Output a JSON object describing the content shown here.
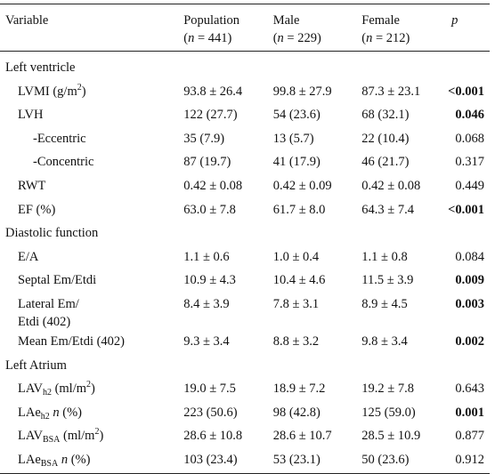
{
  "table": {
    "header": [
      [
        {
          "text": "Variable"
        }
      ],
      [
        {
          "text": "Population"
        },
        {
          "text": "(",
          "newline": true
        },
        {
          "text": "n",
          "style": "italic"
        },
        {
          "text": " = 441)"
        }
      ],
      [
        {
          "text": "Male"
        },
        {
          "text": "(",
          "newline": true
        },
        {
          "text": "n",
          "style": "italic"
        },
        {
          "text": " = 229)"
        }
      ],
      [
        {
          "text": "Female"
        },
        {
          "text": "(",
          "newline": true
        },
        {
          "text": "n",
          "style": "italic"
        },
        {
          "text": " = 212)"
        }
      ],
      [
        {
          "text": "p",
          "style": "italic"
        }
      ]
    ],
    "rows": [
      {
        "section": "Left ventricle"
      },
      {
        "level": 1,
        "variable": [
          {
            "text": "LVMI (g/m"
          },
          {
            "text": "2",
            "style": "sup"
          },
          {
            "text": ")"
          }
        ],
        "cells": [
          "93.8 ± 26.4",
          "99.8 ± 27.9",
          "87.3 ± 23.1",
          "<0.001"
        ],
        "p_bold": true
      },
      {
        "level": 1,
        "variable": [
          {
            "text": "LVH"
          }
        ],
        "cells": [
          "122 (27.7)",
          "54 (23.6)",
          "68 (32.1)",
          "0.046"
        ],
        "p_bold": true
      },
      {
        "level": 2,
        "variable": [
          {
            "text": "-Eccentric"
          }
        ],
        "cells": [
          "35 (7.9)",
          "13 (5.7)",
          "22 (10.4)",
          "0.068"
        ],
        "p_bold": false
      },
      {
        "level": 2,
        "variable": [
          {
            "text": "-Concentric"
          }
        ],
        "cells": [
          "87 (19.7)",
          "41 (17.9)",
          "46 (21.7)",
          "0.317"
        ],
        "p_bold": false
      },
      {
        "level": 1,
        "variable": [
          {
            "text": "RWT"
          }
        ],
        "cells": [
          "0.42 ± 0.08",
          "0.42 ± 0.09",
          "0.42 ± 0.08",
          "0.449"
        ],
        "p_bold": false
      },
      {
        "level": 1,
        "variable": [
          {
            "text": "EF (%)"
          }
        ],
        "cells": [
          "63.0 ± 7.8",
          "61.7 ± 8.0",
          "64.3 ± 7.4",
          "<0.001"
        ],
        "p_bold": true
      },
      {
        "section": "Diastolic function"
      },
      {
        "level": 1,
        "variable": [
          {
            "text": "E/A"
          }
        ],
        "cells": [
          "1.1 ± 0.6",
          "1.0 ± 0.4",
          "1.1 ± 0.8",
          "0.084"
        ],
        "p_bold": false
      },
      {
        "level": 1,
        "variable": [
          {
            "text": "Septal Em/Etdi"
          }
        ],
        "cells": [
          "10.9 ± 4.3",
          "10.4 ± 4.6",
          "11.5 ± 3.9",
          "0.009"
        ],
        "p_bold": true
      },
      {
        "level": 1,
        "variable": [
          {
            "text": "Lateral Em/"
          },
          {
            "text": "Etdi (402)",
            "newline": true
          }
        ],
        "cells": [
          "8.4 ± 3.9",
          "7.8 ± 3.1",
          "8.9 ± 4.5",
          "0.003"
        ],
        "p_bold": true
      },
      {
        "level": 1,
        "variable": [
          {
            "text": "Mean Em/Etdi (402)"
          }
        ],
        "cells": [
          "9.3 ± 3.4",
          "8.8 ± 3.2",
          "9.8 ± 3.4",
          "0.002"
        ],
        "p_bold": true
      },
      {
        "section": "Left Atrium"
      },
      {
        "level": 1,
        "variable": [
          {
            "text": "LAV"
          },
          {
            "text": "h2",
            "style": "sub"
          },
          {
            "text": " (ml/m"
          },
          {
            "text": "2",
            "style": "sup"
          },
          {
            "text": ")"
          }
        ],
        "cells": [
          "19.0 ± 7.5",
          "18.9 ± 7.2",
          "19.2 ± 7.8",
          "0.643"
        ],
        "p_bold": false
      },
      {
        "level": 1,
        "variable": [
          {
            "text": "LAe"
          },
          {
            "text": "h2",
            "style": "sub"
          },
          {
            "text": " "
          },
          {
            "text": "n",
            "style": "italic"
          },
          {
            "text": " (%)"
          }
        ],
        "cells": [
          "223 (50.6)",
          "98 (42.8)",
          "125 (59.0)",
          "0.001"
        ],
        "p_bold": true
      },
      {
        "level": 1,
        "variable": [
          {
            "text": "LAV"
          },
          {
            "text": "BSA",
            "style": "sub"
          },
          {
            "text": " (ml/m"
          },
          {
            "text": "2",
            "style": "sup"
          },
          {
            "text": ")"
          }
        ],
        "cells": [
          "28.6 ± 10.8",
          "28.6 ± 10.7",
          "28.5 ± 10.9",
          "0.877"
        ],
        "p_bold": false
      },
      {
        "level": 1,
        "variable": [
          {
            "text": "LAe"
          },
          {
            "text": "BSA",
            "style": "sub"
          },
          {
            "text": " "
          },
          {
            "text": "n",
            "style": "italic"
          },
          {
            "text": " (%)"
          }
        ],
        "cells": [
          "103 (23.4)",
          "53 (23.1)",
          "50 (23.6)",
          "0.912"
        ],
        "p_bold": false
      }
    ]
  }
}
